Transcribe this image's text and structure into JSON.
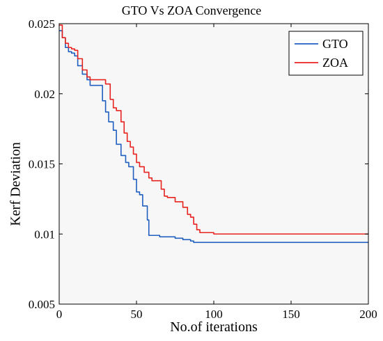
{
  "chart_data": {
    "type": "line",
    "title": "GTO Vs ZOA Convergence",
    "xlabel": "No.of iterations",
    "ylabel": "Kerf Deviation",
    "xlim": [
      0,
      200
    ],
    "ylim": [
      0.005,
      0.025
    ],
    "x_ticks": [
      0,
      50,
      100,
      150,
      200
    ],
    "x_tick_labels": [
      "0",
      "50",
      "100",
      "150",
      "200"
    ],
    "y_ticks": [
      0.005,
      0.01,
      0.015,
      0.02,
      0.025
    ],
    "y_tick_labels": [
      "0.005",
      "0.01",
      "0.015",
      "0.02",
      "0.025"
    ],
    "grid": false,
    "legend_position": "top-right",
    "series": [
      {
        "name": "GTO",
        "color": "#1f5fc0",
        "x": [
          0,
          2,
          4,
          6,
          8,
          10,
          12,
          15,
          18,
          20,
          24,
          28,
          30,
          32,
          35,
          37,
          40,
          43,
          45,
          48,
          50,
          52,
          54,
          56,
          57,
          58,
          60,
          65,
          70,
          75,
          80,
          85,
          87,
          90,
          100,
          120,
          150,
          200
        ],
        "y": [
          0.0245,
          0.024,
          0.0233,
          0.023,
          0.0229,
          0.0227,
          0.022,
          0.0214,
          0.021,
          0.0206,
          0.0206,
          0.0195,
          0.0187,
          0.018,
          0.0174,
          0.0164,
          0.0156,
          0.0151,
          0.0148,
          0.0139,
          0.013,
          0.0128,
          0.012,
          0.012,
          0.011,
          0.0099,
          0.0099,
          0.0098,
          0.0098,
          0.0097,
          0.0096,
          0.0095,
          0.0094,
          0.0094,
          0.0094,
          0.0094,
          0.0094,
          0.0094
        ]
      },
      {
        "name": "ZOA",
        "color": "#e8231f",
        "x": [
          0,
          2,
          4,
          6,
          8,
          10,
          12,
          15,
          18,
          20,
          24,
          28,
          30,
          33,
          35,
          37,
          40,
          42,
          44,
          46,
          48,
          50,
          52,
          55,
          58,
          60,
          63,
          66,
          68,
          70,
          75,
          80,
          83,
          85,
          87,
          89,
          91,
          95,
          100,
          120,
          150,
          200
        ],
        "y": [
          0.0249,
          0.024,
          0.0236,
          0.0233,
          0.0232,
          0.0231,
          0.0225,
          0.0217,
          0.0212,
          0.021,
          0.021,
          0.021,
          0.0207,
          0.0196,
          0.019,
          0.0188,
          0.018,
          0.0172,
          0.0166,
          0.0162,
          0.0157,
          0.0151,
          0.0148,
          0.0144,
          0.014,
          0.0138,
          0.0138,
          0.0132,
          0.0127,
          0.0126,
          0.0123,
          0.0119,
          0.0114,
          0.0112,
          0.0107,
          0.0103,
          0.0101,
          0.0101,
          0.01,
          0.01,
          0.01,
          0.01
        ]
      }
    ]
  }
}
